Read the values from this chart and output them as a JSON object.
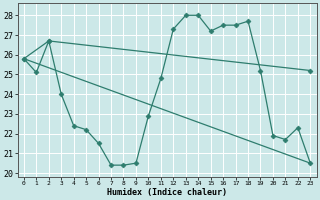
{
  "xlabel": "Humidex (Indice chaleur)",
  "bg_color": "#cce8e8",
  "grid_color": "#ffffff",
  "line_color": "#2e7d6e",
  "xlim": [
    -0.5,
    23.5
  ],
  "ylim": [
    19.8,
    28.6
  ],
  "yticks": [
    20,
    21,
    22,
    23,
    24,
    25,
    26,
    27,
    28
  ],
  "xticks": [
    0,
    1,
    2,
    3,
    4,
    5,
    6,
    7,
    8,
    9,
    10,
    11,
    12,
    13,
    14,
    15,
    16,
    17,
    18,
    19,
    20,
    21,
    22,
    23
  ],
  "series1_x": [
    0,
    1,
    2,
    3,
    4,
    5,
    6,
    7,
    8,
    9,
    10,
    11,
    12,
    13,
    14,
    15,
    16,
    17,
    18,
    19,
    20,
    21,
    22,
    23
  ],
  "series1_y": [
    25.8,
    25.1,
    26.7,
    24.0,
    22.4,
    22.2,
    21.5,
    20.4,
    20.4,
    20.5,
    22.9,
    24.8,
    27.3,
    28.0,
    28.0,
    27.2,
    27.5,
    27.5,
    27.7,
    25.2,
    21.9,
    21.7,
    22.3,
    20.5
  ],
  "upper_line_x": [
    0,
    2,
    23
  ],
  "upper_line_y": [
    25.8,
    26.7,
    25.2
  ],
  "lower_line_x": [
    0,
    23
  ],
  "lower_line_y": [
    25.8,
    20.5
  ],
  "marker": "D",
  "markersize": 2.5,
  "linewidth": 0.9
}
